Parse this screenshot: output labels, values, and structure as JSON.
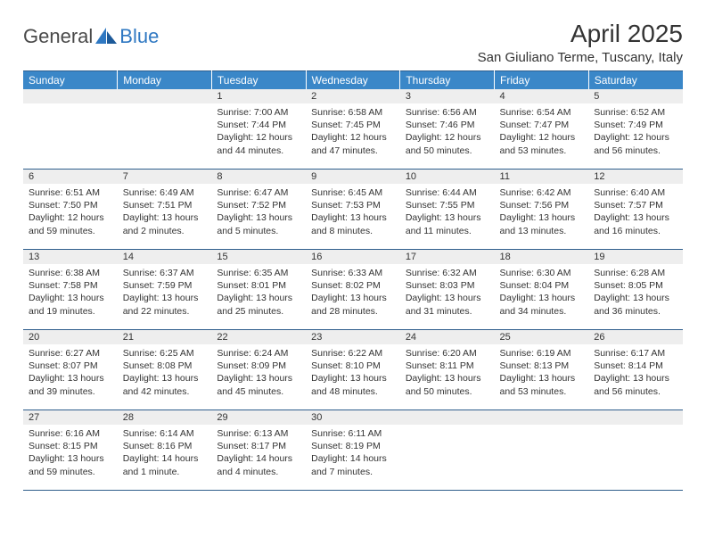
{
  "logo": {
    "part1": "General",
    "part2": "Blue"
  },
  "title": "April 2025",
  "location": "San Giuliano Terme, Tuscany, Italy",
  "header_bg": "#3a87c8",
  "border_color": "#2f5e8c",
  "daynum_bg": "#eeeeee",
  "text_color": "#333333",
  "days_of_week": [
    "Sunday",
    "Monday",
    "Tuesday",
    "Wednesday",
    "Thursday",
    "Friday",
    "Saturday"
  ],
  "weeks": [
    [
      null,
      null,
      {
        "n": "1",
        "sunrise": "7:00 AM",
        "sunset": "7:44 PM",
        "day_h": "12",
        "day_m": "44"
      },
      {
        "n": "2",
        "sunrise": "6:58 AM",
        "sunset": "7:45 PM",
        "day_h": "12",
        "day_m": "47"
      },
      {
        "n": "3",
        "sunrise": "6:56 AM",
        "sunset": "7:46 PM",
        "day_h": "12",
        "day_m": "50"
      },
      {
        "n": "4",
        "sunrise": "6:54 AM",
        "sunset": "7:47 PM",
        "day_h": "12",
        "day_m": "53"
      },
      {
        "n": "5",
        "sunrise": "6:52 AM",
        "sunset": "7:49 PM",
        "day_h": "12",
        "day_m": "56"
      }
    ],
    [
      {
        "n": "6",
        "sunrise": "6:51 AM",
        "sunset": "7:50 PM",
        "day_h": "12",
        "day_m": "59"
      },
      {
        "n": "7",
        "sunrise": "6:49 AM",
        "sunset": "7:51 PM",
        "day_h": "13",
        "day_m": "2"
      },
      {
        "n": "8",
        "sunrise": "6:47 AM",
        "sunset": "7:52 PM",
        "day_h": "13",
        "day_m": "5"
      },
      {
        "n": "9",
        "sunrise": "6:45 AM",
        "sunset": "7:53 PM",
        "day_h": "13",
        "day_m": "8"
      },
      {
        "n": "10",
        "sunrise": "6:44 AM",
        "sunset": "7:55 PM",
        "day_h": "13",
        "day_m": "11"
      },
      {
        "n": "11",
        "sunrise": "6:42 AM",
        "sunset": "7:56 PM",
        "day_h": "13",
        "day_m": "13"
      },
      {
        "n": "12",
        "sunrise": "6:40 AM",
        "sunset": "7:57 PM",
        "day_h": "13",
        "day_m": "16"
      }
    ],
    [
      {
        "n": "13",
        "sunrise": "6:38 AM",
        "sunset": "7:58 PM",
        "day_h": "13",
        "day_m": "19"
      },
      {
        "n": "14",
        "sunrise": "6:37 AM",
        "sunset": "7:59 PM",
        "day_h": "13",
        "day_m": "22"
      },
      {
        "n": "15",
        "sunrise": "6:35 AM",
        "sunset": "8:01 PM",
        "day_h": "13",
        "day_m": "25"
      },
      {
        "n": "16",
        "sunrise": "6:33 AM",
        "sunset": "8:02 PM",
        "day_h": "13",
        "day_m": "28"
      },
      {
        "n": "17",
        "sunrise": "6:32 AM",
        "sunset": "8:03 PM",
        "day_h": "13",
        "day_m": "31"
      },
      {
        "n": "18",
        "sunrise": "6:30 AM",
        "sunset": "8:04 PM",
        "day_h": "13",
        "day_m": "34"
      },
      {
        "n": "19",
        "sunrise": "6:28 AM",
        "sunset": "8:05 PM",
        "day_h": "13",
        "day_m": "36"
      }
    ],
    [
      {
        "n": "20",
        "sunrise": "6:27 AM",
        "sunset": "8:07 PM",
        "day_h": "13",
        "day_m": "39"
      },
      {
        "n": "21",
        "sunrise": "6:25 AM",
        "sunset": "8:08 PM",
        "day_h": "13",
        "day_m": "42"
      },
      {
        "n": "22",
        "sunrise": "6:24 AM",
        "sunset": "8:09 PM",
        "day_h": "13",
        "day_m": "45"
      },
      {
        "n": "23",
        "sunrise": "6:22 AM",
        "sunset": "8:10 PM",
        "day_h": "13",
        "day_m": "48"
      },
      {
        "n": "24",
        "sunrise": "6:20 AM",
        "sunset": "8:11 PM",
        "day_h": "13",
        "day_m": "50"
      },
      {
        "n": "25",
        "sunrise": "6:19 AM",
        "sunset": "8:13 PM",
        "day_h": "13",
        "day_m": "53"
      },
      {
        "n": "26",
        "sunrise": "6:17 AM",
        "sunset": "8:14 PM",
        "day_h": "13",
        "day_m": "56"
      }
    ],
    [
      {
        "n": "27",
        "sunrise": "6:16 AM",
        "sunset": "8:15 PM",
        "day_h": "13",
        "day_m": "59"
      },
      {
        "n": "28",
        "sunrise": "6:14 AM",
        "sunset": "8:16 PM",
        "day_h": "14",
        "day_m": "1",
        "minute_word": "minute"
      },
      {
        "n": "29",
        "sunrise": "6:13 AM",
        "sunset": "8:17 PM",
        "day_h": "14",
        "day_m": "4"
      },
      {
        "n": "30",
        "sunrise": "6:11 AM",
        "sunset": "8:19 PM",
        "day_h": "14",
        "day_m": "7"
      },
      null,
      null,
      null
    ]
  ]
}
